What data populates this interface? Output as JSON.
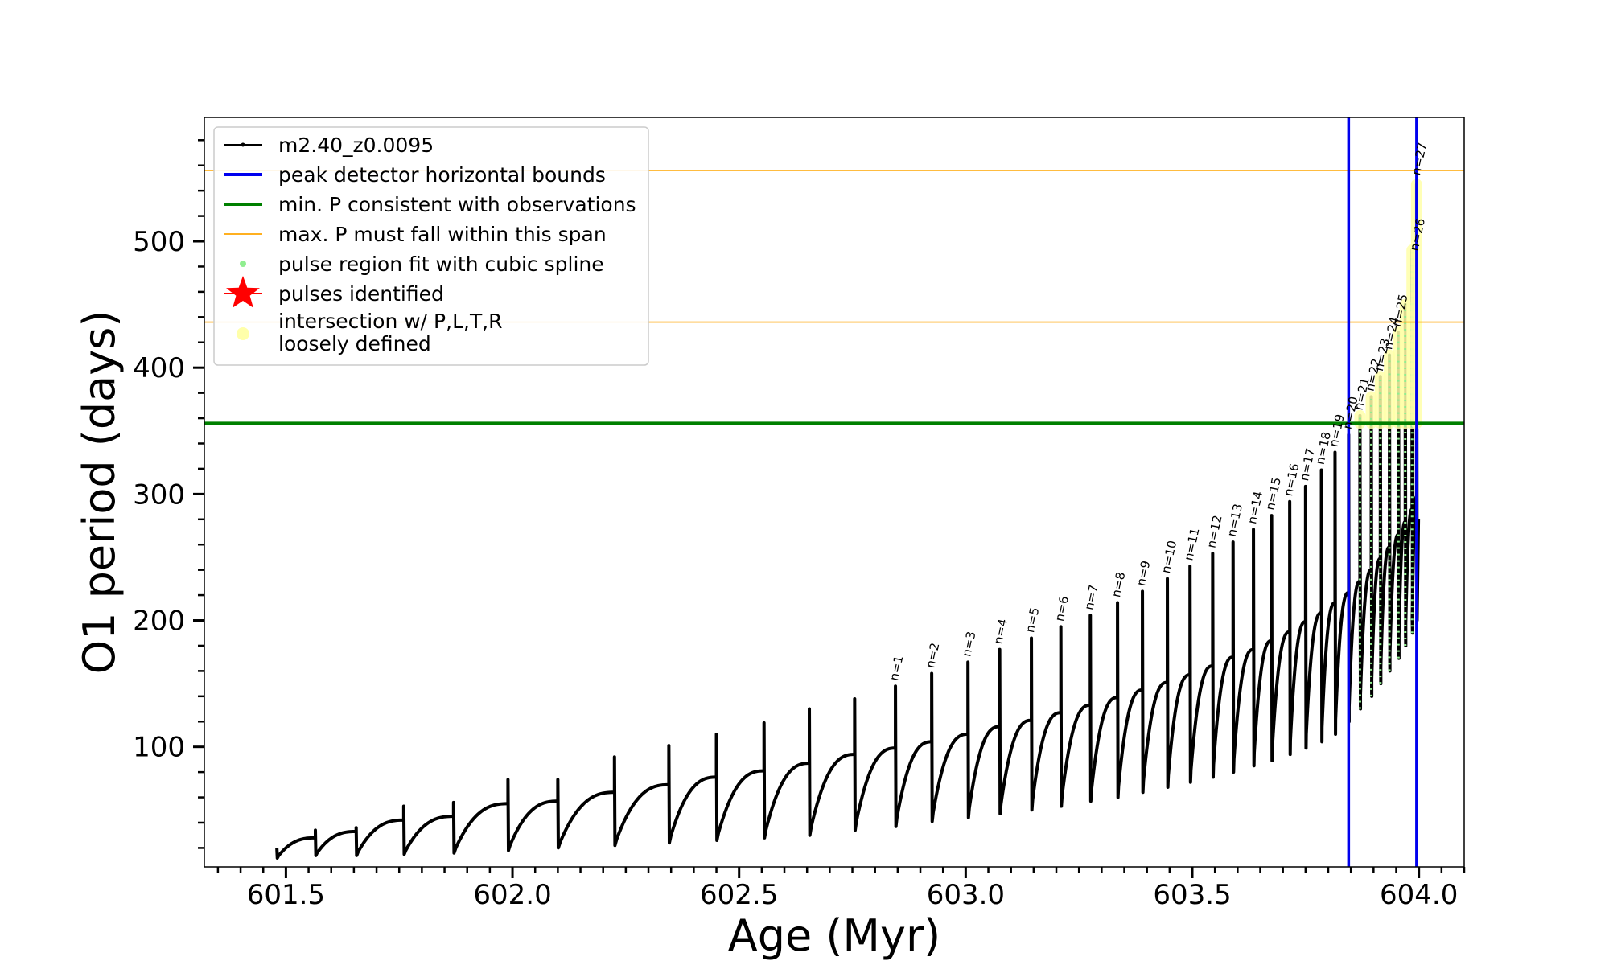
{
  "chart_data": {
    "type": "line",
    "xlabel": "Age (Myr)",
    "ylabel": "O1 period (days)",
    "xlim": [
      601.32,
      604.1
    ],
    "ylim": [
      5,
      598
    ],
    "xticks": [
      601.5,
      602.0,
      602.5,
      603.0,
      603.5,
      604.0
    ],
    "xtick_labels": [
      "601.5",
      "602.0",
      "602.5",
      "603.0",
      "603.5",
      "604.0"
    ],
    "yticks": [
      100,
      200,
      300,
      400,
      500
    ],
    "ytick_labels": [
      "100",
      "200",
      "300",
      "400",
      "500"
    ],
    "x_minor_step": 0.05,
    "y_minor_step": 20,
    "grid": false,
    "legend_position": "top-left",
    "legend": [
      {
        "label": "m2.40_z0.0095",
        "marker": "line-dot",
        "color": "#000000"
      },
      {
        "label": "peak detector horizontal bounds",
        "marker": "line",
        "color": "#0000ee"
      },
      {
        "label": "min. P consistent with observations",
        "marker": "line",
        "color": "#008000"
      },
      {
        "label": "max. P must fall within this span",
        "marker": "thin-line",
        "color": "#ffa500"
      },
      {
        "label": "pulse region fit with cubic spline",
        "marker": "dot",
        "color": "#90ee90"
      },
      {
        "label": "pulses identified",
        "marker": "star",
        "color": "#ff0000"
      },
      {
        "label": "intersection w/ P,L,T,R\nloosely defined",
        "marker": "circle",
        "color": "#ffffaa"
      }
    ],
    "series_color": "#000000",
    "vlines": [
      {
        "x": 603.845,
        "color": "#0000ee"
      },
      {
        "x": 603.995,
        "color": "#0000ee"
      }
    ],
    "hlines": [
      {
        "y": 356,
        "color": "#008000",
        "width": "thick"
      },
      {
        "y": 436,
        "color": "#ffa500",
        "width": "thin"
      },
      {
        "y": 556,
        "color": "#ffa500",
        "width": "thin"
      }
    ],
    "pulses": [
      {
        "x": 601.48,
        "base": 12,
        "pre": 20,
        "peak": 20
      },
      {
        "x": 601.565,
        "base": 14,
        "pre": 28,
        "peak": 34
      },
      {
        "x": 601.655,
        "base": 14,
        "pre": 33,
        "peak": 36
      },
      {
        "x": 601.76,
        "base": 15,
        "pre": 42,
        "peak": 53
      },
      {
        "x": 601.87,
        "base": 16,
        "pre": 45,
        "peak": 56
      },
      {
        "x": 601.99,
        "base": 18,
        "pre": 55,
        "peak": 74
      },
      {
        "x": 602.1,
        "base": 20,
        "pre": 57,
        "peak": 74
      },
      {
        "x": 602.225,
        "base": 22,
        "pre": 64,
        "peak": 92
      },
      {
        "x": 602.345,
        "base": 24,
        "pre": 70,
        "peak": 101
      },
      {
        "x": 602.45,
        "base": 26,
        "pre": 76,
        "peak": 110
      },
      {
        "x": 602.555,
        "base": 28,
        "pre": 81,
        "peak": 119
      },
      {
        "x": 602.655,
        "base": 30,
        "pre": 87,
        "peak": 130
      },
      {
        "x": 602.755,
        "base": 34,
        "pre": 94,
        "peak": 138
      },
      {
        "x": 602.845,
        "base": 37,
        "pre": 99,
        "peak": 148
      },
      {
        "x": 602.925,
        "base": 41,
        "pre": 104,
        "peak": 158
      },
      {
        "x": 603.005,
        "base": 44,
        "pre": 110,
        "peak": 167
      },
      {
        "x": 603.075,
        "base": 47,
        "pre": 116,
        "peak": 177
      },
      {
        "x": 603.145,
        "base": 50,
        "pre": 121,
        "peak": 186
      },
      {
        "x": 603.21,
        "base": 53,
        "pre": 127,
        "peak": 195
      },
      {
        "x": 603.275,
        "base": 57,
        "pre": 133,
        "peak": 204
      },
      {
        "x": 603.335,
        "base": 60,
        "pre": 139,
        "peak": 214
      },
      {
        "x": 603.39,
        "base": 64,
        "pre": 145,
        "peak": 223
      },
      {
        "x": 603.445,
        "base": 68,
        "pre": 151,
        "peak": 233
      },
      {
        "x": 603.495,
        "base": 72,
        "pre": 157,
        "peak": 243
      },
      {
        "x": 603.545,
        "base": 76,
        "pre": 164,
        "peak": 253
      },
      {
        "x": 603.59,
        "base": 80,
        "pre": 171,
        "peak": 262
      },
      {
        "x": 603.635,
        "base": 85,
        "pre": 177,
        "peak": 272
      },
      {
        "x": 603.675,
        "base": 89,
        "pre": 184,
        "peak": 283
      },
      {
        "x": 603.715,
        "base": 94,
        "pre": 191,
        "peak": 294
      },
      {
        "x": 603.75,
        "base": 99,
        "pre": 199,
        "peak": 306
      },
      {
        "x": 603.785,
        "base": 104,
        "pre": 206,
        "peak": 319
      },
      {
        "x": 603.815,
        "base": 110,
        "pre": 214,
        "peak": 333
      },
      {
        "x": 603.845,
        "base": 120,
        "pre": 222,
        "peak": 347
      },
      {
        "x": 603.87,
        "base": 130,
        "pre": 231,
        "peak": 362
      },
      {
        "x": 603.895,
        "base": 140,
        "pre": 240,
        "peak": 377
      },
      {
        "x": 603.915,
        "base": 150,
        "pre": 249,
        "peak": 393
      },
      {
        "x": 603.935,
        "base": 160,
        "pre": 258,
        "peak": 410
      },
      {
        "x": 603.955,
        "base": 170,
        "pre": 268,
        "peak": 428
      },
      {
        "x": 603.97,
        "base": 180,
        "pre": 278,
        "peak": 450
      },
      {
        "x": 603.985,
        "base": 190,
        "pre": 288,
        "peak": 493
      },
      {
        "x": 603.995,
        "base": 200,
        "pre": 298,
        "peak": 545
      }
    ],
    "annotations": [
      {
        "text": "n=1",
        "x": 602.85,
        "y": 148
      },
      {
        "text": "n=2",
        "x": 602.93,
        "y": 158
      },
      {
        "text": "n=3",
        "x": 603.01,
        "y": 167
      },
      {
        "text": "n=4",
        "x": 603.08,
        "y": 177
      },
      {
        "text": "n=5",
        "x": 603.15,
        "y": 186
      },
      {
        "text": "n=6",
        "x": 603.215,
        "y": 195
      },
      {
        "text": "n=7",
        "x": 603.28,
        "y": 204
      },
      {
        "text": "n=8",
        "x": 603.34,
        "y": 214
      },
      {
        "text": "n=9",
        "x": 603.395,
        "y": 223
      },
      {
        "text": "n=10",
        "x": 603.45,
        "y": 233
      },
      {
        "text": "n=11",
        "x": 603.5,
        "y": 243
      },
      {
        "text": "n=12",
        "x": 603.55,
        "y": 253
      },
      {
        "text": "n=13",
        "x": 603.595,
        "y": 262
      },
      {
        "text": "n=14",
        "x": 603.64,
        "y": 272
      },
      {
        "text": "n=15",
        "x": 603.68,
        "y": 283
      },
      {
        "text": "n=16",
        "x": 603.72,
        "y": 294
      },
      {
        "text": "n=17",
        "x": 603.755,
        "y": 306
      },
      {
        "text": "n=18",
        "x": 603.79,
        "y": 319
      },
      {
        "text": "n=19",
        "x": 603.82,
        "y": 333
      },
      {
        "text": "n=20",
        "x": 603.85,
        "y": 347
      },
      {
        "text": "n=21",
        "x": 603.875,
        "y": 362
      },
      {
        "text": "n=22",
        "x": 603.9,
        "y": 377
      },
      {
        "text": "n=23",
        "x": 603.92,
        "y": 393
      },
      {
        "text": "n=24",
        "x": 603.94,
        "y": 410
      },
      {
        "text": "n=25",
        "x": 603.96,
        "y": 428
      },
      {
        "text": "n=26",
        "x": 603.998,
        "y": 488
      },
      {
        "text": "n=27",
        "x": 604.002,
        "y": 548
      }
    ]
  }
}
